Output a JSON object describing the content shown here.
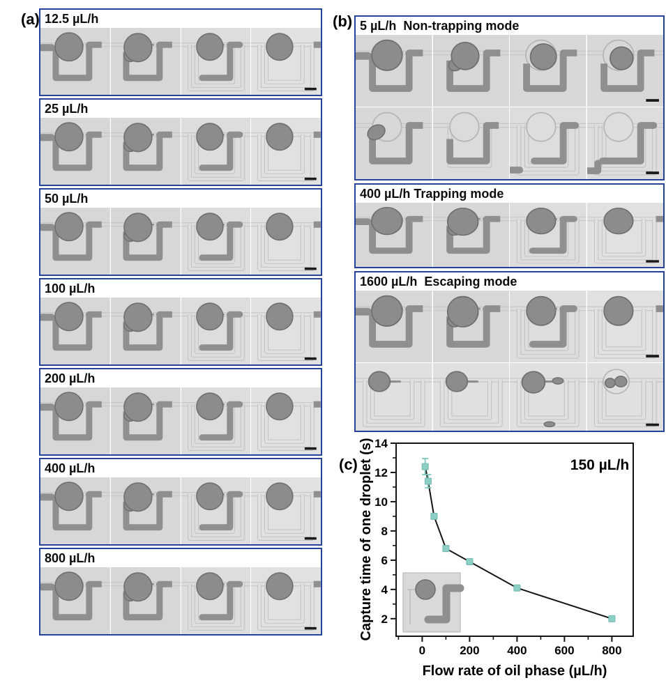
{
  "figure": {
    "panel_a": {
      "label": "(a)",
      "rows": [
        {
          "label": "12.5 µL/h",
          "frames": [
            "inlet-full",
            "full",
            "half",
            "empty"
          ]
        },
        {
          "label": "25 µL/h",
          "frames": [
            "inlet-full",
            "full",
            "half",
            "empty"
          ]
        },
        {
          "label": "50 µL/h",
          "frames": [
            "inlet-full",
            "full",
            "half",
            "empty"
          ]
        },
        {
          "label": "100 µL/h",
          "frames": [
            "inlet-full",
            "full",
            "half",
            "empty"
          ]
        },
        {
          "label": "200 µL/h",
          "frames": [
            "inlet-full",
            "full",
            "half",
            "empty"
          ]
        },
        {
          "label": "400 µL/h",
          "frames": [
            "inlet-full",
            "full",
            "half",
            "empty"
          ]
        },
        {
          "label": "800 µL/h",
          "frames": [
            "inlet-full",
            "full",
            "half",
            "empty"
          ]
        }
      ]
    },
    "panel_b": {
      "label": "(b)",
      "sections": [
        {
          "label": "5 µL/h  Non-trapping mode",
          "rows": [
            [
              "inlet-full",
              "squeeze2",
              "squeeze3",
              "squeeze4"
            ],
            [
              "exit",
              "trap-u",
              "trap-c1",
              "trap-c2"
            ]
          ]
        },
        {
          "label": "400 µL/h Trapping mode",
          "rows": [
            [
              "inlet-full",
              "full",
              "half",
              "empty"
            ]
          ]
        },
        {
          "label": "1600 µL/h  Escaping mode",
          "rows": [
            [
              "inlet-full",
              "full",
              "half",
              "empty"
            ],
            [
              "tail",
              "tail",
              "tail-blob",
              "two-drops"
            ]
          ]
        }
      ]
    },
    "panel_c": {
      "label": "(c)"
    }
  },
  "chart_data": {
    "type": "scatter",
    "x": [
      12.5,
      25,
      50,
      100,
      200,
      400,
      800
    ],
    "y": [
      12.4,
      11.4,
      9.0,
      6.8,
      5.9,
      4.1,
      2.0
    ],
    "yerr": [
      0.55,
      0.45,
      0,
      0,
      0,
      0,
      0
    ],
    "title": "",
    "xlabel": "Flow rate of oil phase (µL/h)",
    "ylabel": "Capture time of one droplet (s)",
    "annotation": "150 µL/h",
    "xlim": [
      -110,
      890
    ],
    "ylim": [
      0.8,
      14
    ],
    "xticks": [
      0,
      200,
      400,
      600,
      800
    ],
    "xminor": [
      -100,
      100,
      300,
      500,
      700
    ],
    "yticks": [
      2,
      4,
      6,
      8,
      10,
      12,
      14
    ],
    "yminor": [
      3,
      5,
      7,
      9,
      11,
      13
    ],
    "grid": false,
    "legend": null,
    "marker_color": "#8ccfc7",
    "marker_stroke": "#72b8af",
    "errorbar_color": "#7cc7bd",
    "line_color": "#141414"
  },
  "colors": {
    "panel_border": "#26439a",
    "channel_dark": "#8f8f8f",
    "droplet_fill": "#8c8c8c",
    "droplet_stroke": "#6f6f6f",
    "channel_outline": "#c2c2c2",
    "scalebar": "#1a1a1a"
  }
}
